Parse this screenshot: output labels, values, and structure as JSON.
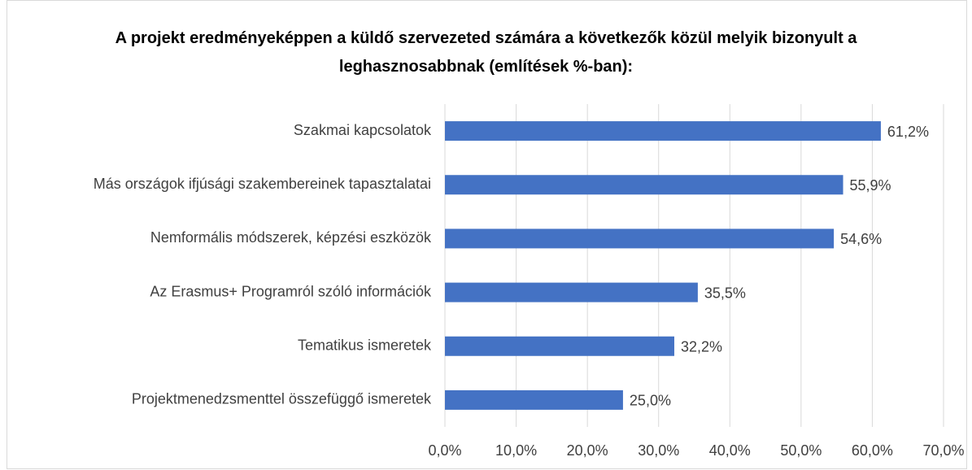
{
  "chart_data": {
    "type": "bar",
    "orientation": "horizontal",
    "title": "A projekt eredményeképpen a küldő szervezeted számára a következők közül melyik bizonyult a leghasznosabbnak (említések %-ban):",
    "categories": [
      "Szakmai kapcsolatok",
      "Más országok ifjúsági szakembereinek tapasztalatai",
      "Nemformális módszerek, képzési eszközök",
      "Az Erasmus+ Programról szóló információk",
      "Tematikus ismeretek",
      "Projektmenedzsmenttel összefüggő ismeretek"
    ],
    "values": [
      61.2,
      55.9,
      54.6,
      35.5,
      32.2,
      25.0
    ],
    "value_labels": [
      "61,2%",
      "55,9%",
      "54,6%",
      "35,5%",
      "32,2%",
      "25,0%"
    ],
    "color": "#4472c4",
    "xlim": [
      0,
      70
    ],
    "xticks": [
      {
        "value": 0,
        "label": "0,0%"
      },
      {
        "value": 10,
        "label": "10,0%"
      },
      {
        "value": 20,
        "label": "20,0%"
      },
      {
        "value": 30,
        "label": "30,0%"
      },
      {
        "value": 40,
        "label": "40,0%"
      },
      {
        "value": 50,
        "label": "50,0%"
      },
      {
        "value": 60,
        "label": "60,0%"
      },
      {
        "value": 70,
        "label": "70,0%"
      }
    ],
    "grid": true
  }
}
